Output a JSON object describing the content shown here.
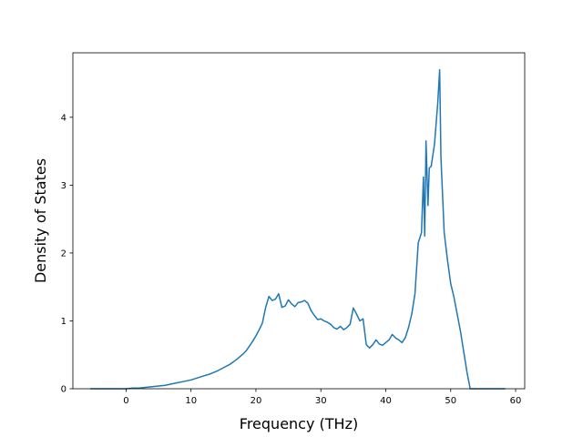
{
  "chart_data": {
    "type": "line",
    "title": "",
    "xlabel": "Frequency (THz)",
    "ylabel": "Density of States",
    "xlim": [
      -8.2,
      61.4
    ],
    "ylim": [
      0,
      4.95
    ],
    "xticks": [
      0,
      10,
      20,
      30,
      40,
      50,
      60
    ],
    "yticks": [
      0,
      1,
      2,
      3,
      4
    ],
    "grid": false,
    "legend": "none",
    "series": [
      {
        "color": "#1f77b4",
        "x": [
          -5.4,
          -3,
          -1,
          0,
          1,
          2,
          3,
          4,
          5,
          6,
          7,
          8,
          9,
          10,
          11,
          12,
          13,
          14,
          15,
          16,
          17,
          17.5,
          18,
          18.5,
          19,
          19.5,
          20,
          20.5,
          21,
          21.5,
          22,
          22.5,
          23,
          23.5,
          24,
          24.5,
          25,
          25.5,
          26,
          26.5,
          27,
          27.5,
          28,
          28.5,
          29,
          29.5,
          30,
          30.5,
          31,
          31.5,
          32,
          32.5,
          33,
          33.5,
          34,
          34.5,
          35,
          35.5,
          36,
          36.5,
          37,
          37.5,
          38,
          38.5,
          39,
          39.5,
          40,
          40.5,
          41,
          41.5,
          42,
          42.5,
          43,
          43.5,
          44,
          44.5,
          45,
          45.5,
          45.8,
          46,
          46.2,
          46.5,
          46.7,
          47,
          47.5,
          48,
          48.3,
          48.5,
          49,
          49.5,
          50,
          50.5,
          51,
          51.5,
          52,
          52.5,
          53,
          53.5,
          55,
          58.3
        ],
        "values": [
          0,
          0,
          0,
          0,
          0.01,
          0.01,
          0.02,
          0.03,
          0.04,
          0.05,
          0.07,
          0.09,
          0.11,
          0.13,
          0.16,
          0.19,
          0.22,
          0.26,
          0.31,
          0.36,
          0.43,
          0.47,
          0.51,
          0.56,
          0.63,
          0.7,
          0.78,
          0.87,
          0.97,
          1.2,
          1.36,
          1.3,
          1.32,
          1.4,
          1.2,
          1.22,
          1.31,
          1.25,
          1.21,
          1.27,
          1.28,
          1.3,
          1.26,
          1.15,
          1.08,
          1.02,
          1.03,
          1,
          0.98,
          0.95,
          0.9,
          0.88,
          0.92,
          0.87,
          0.9,
          0.95,
          1.19,
          1.1,
          1,
          1.03,
          0.65,
          0.6,
          0.65,
          0.72,
          0.66,
          0.64,
          0.68,
          0.72,
          0.8,
          0.75,
          0.72,
          0.68,
          0.75,
          0.9,
          1.1,
          1.4,
          2.15,
          2.3,
          3.12,
          2.25,
          3.65,
          2.7,
          3.25,
          3.28,
          3.6,
          4.2,
          4.7,
          3.4,
          2.3,
          1.9,
          1.55,
          1.35,
          1.1,
          0.85,
          0.55,
          0.25,
          0,
          0,
          0,
          0
        ]
      }
    ]
  }
}
